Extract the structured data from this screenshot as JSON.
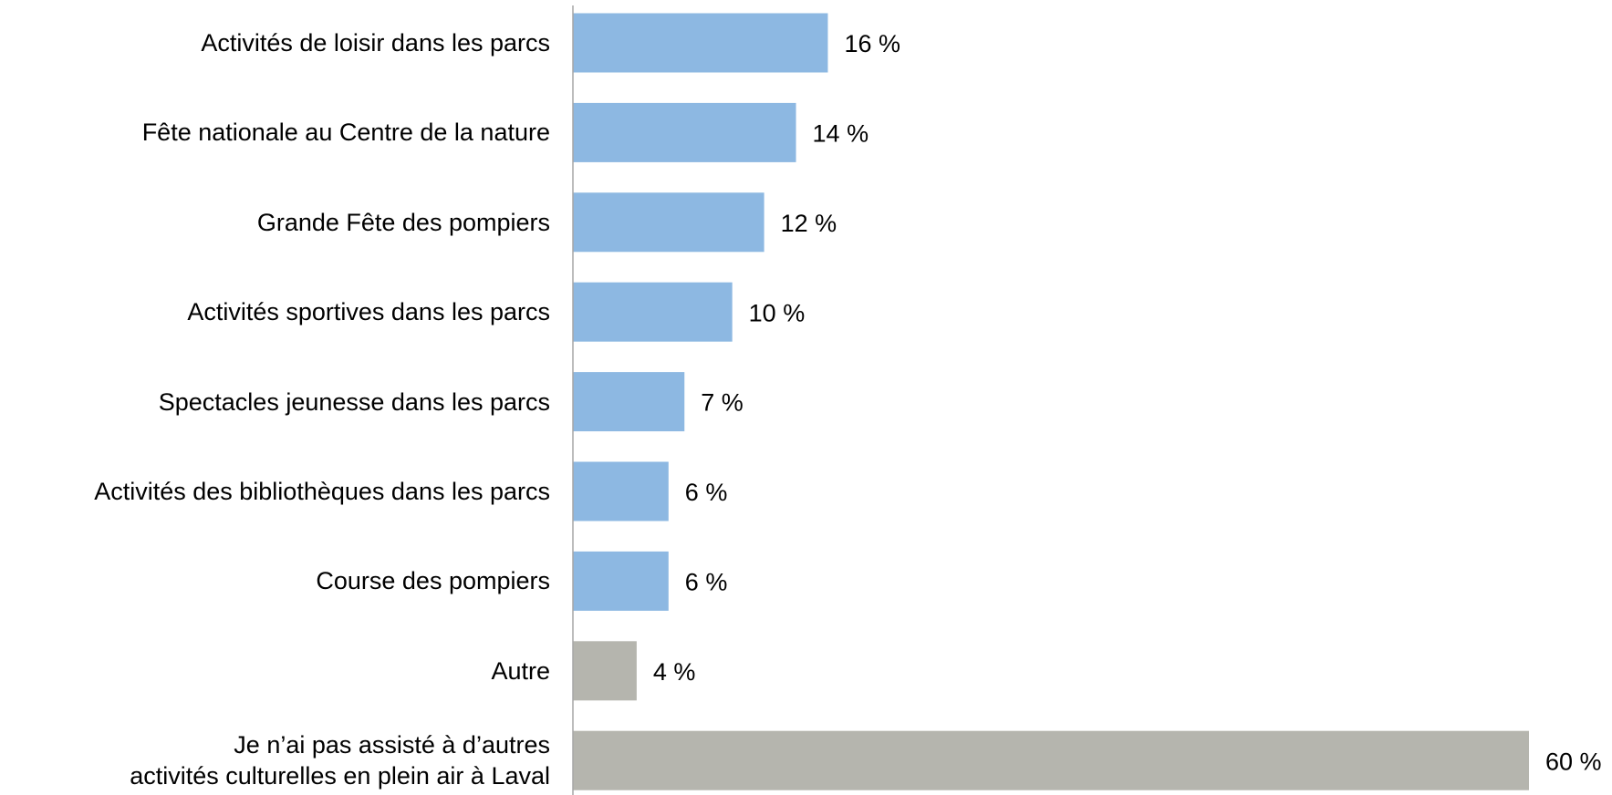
{
  "chart_data": {
    "type": "bar",
    "orientation": "horizontal",
    "categories": [
      "Activités de loisir dans les parcs",
      "Fête nationale au Centre de la nature",
      "Grande Fête des pompiers",
      "Activités sportives dans les parcs",
      "Spectacles jeunesse dans les parcs",
      "Activités des bibliothèques dans les parcs",
      "Course des pompiers",
      "Autre",
      "Je n’ai pas assisté à d’autres\nactivités culturelles en plein air à Laval"
    ],
    "values": [
      16,
      14,
      12,
      10,
      7,
      6,
      6,
      4,
      60
    ],
    "value_labels": [
      "16 %",
      "14 %",
      "12 %",
      "10 %",
      "7 %",
      "6 %",
      "6 %",
      "4 %",
      "60 %"
    ],
    "colors": [
      "#8db8e2",
      "#8db8e2",
      "#8db8e2",
      "#8db8e2",
      "#8db8e2",
      "#8db8e2",
      "#8db8e2",
      "#b5b5ae",
      "#b5b5ae"
    ],
    "xlim": [
      0,
      60
    ]
  }
}
